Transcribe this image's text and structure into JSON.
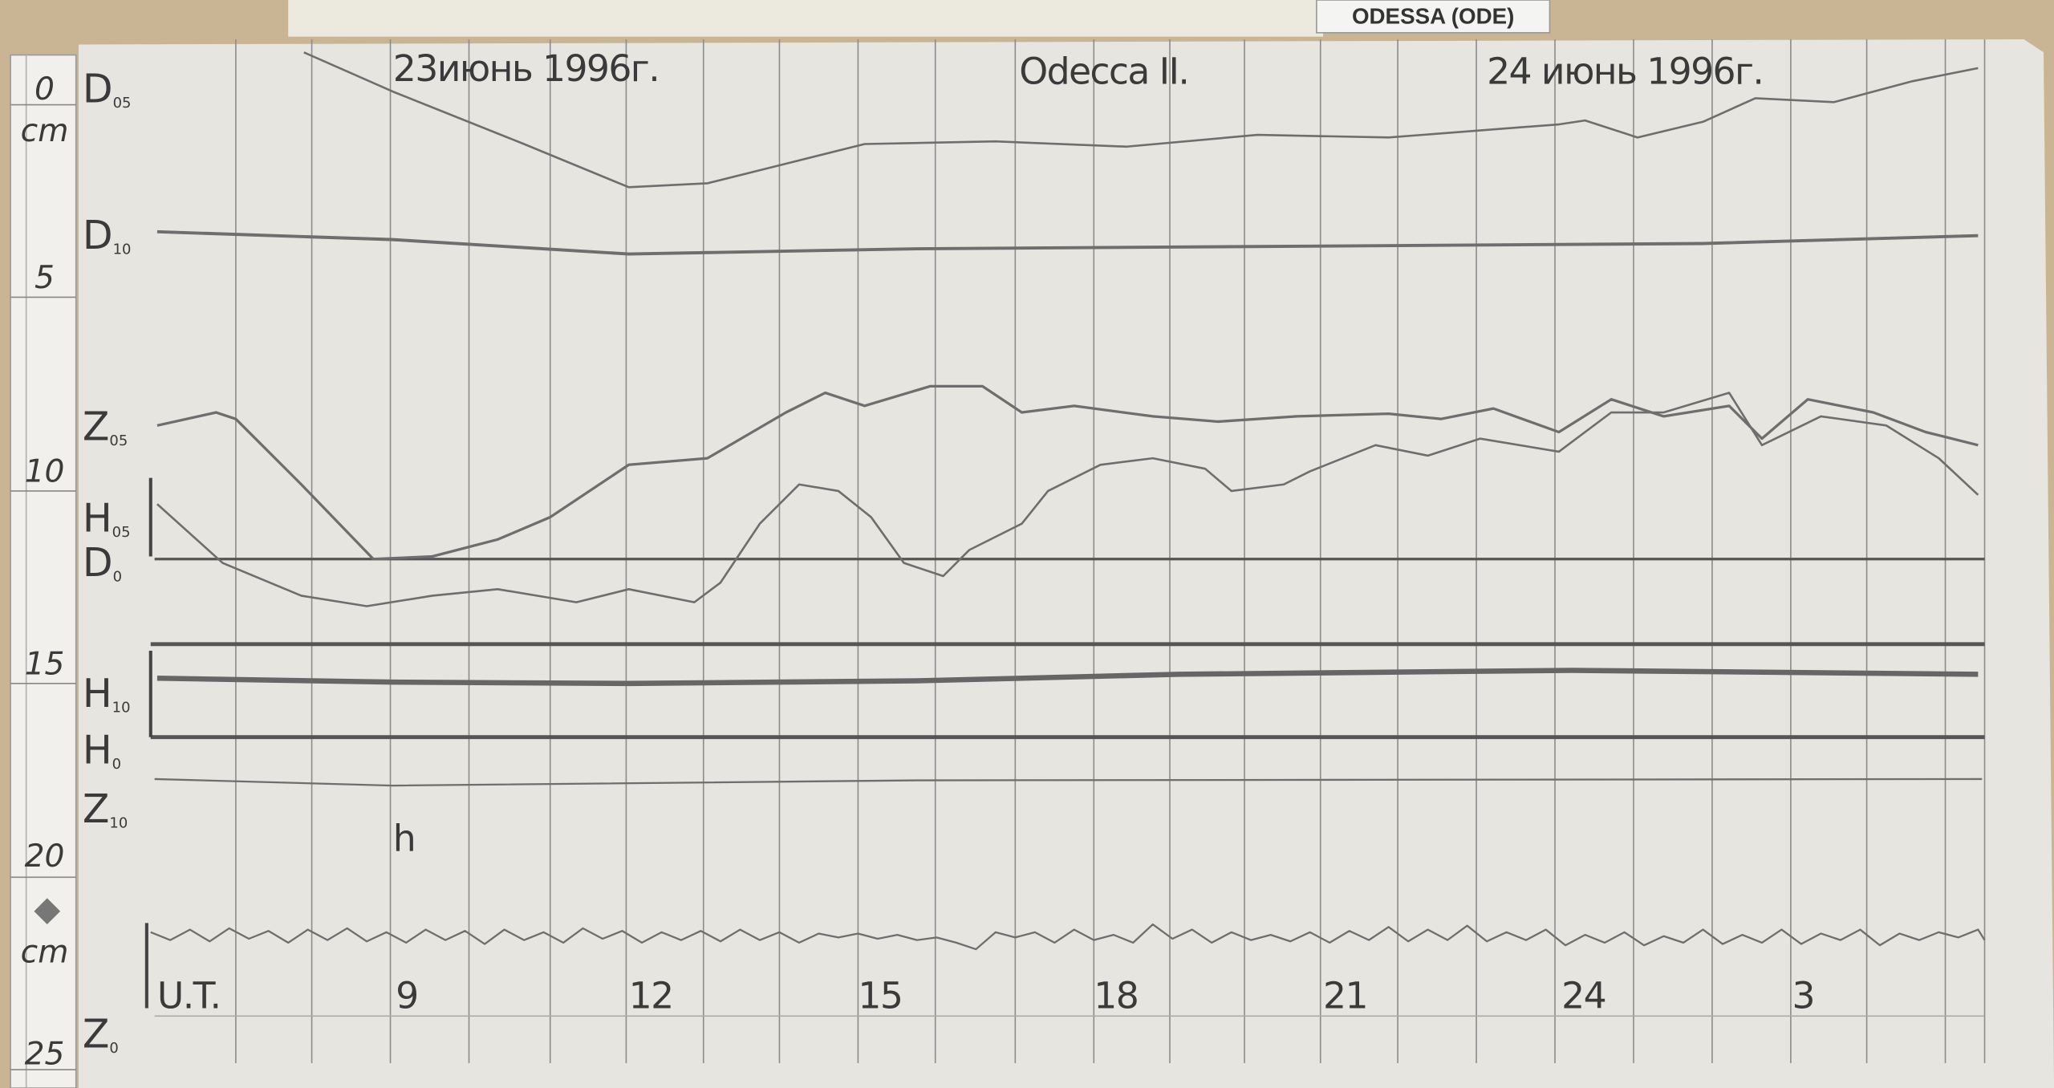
{
  "header": {
    "station_tag": "ODESSA (ODE)"
  },
  "titles": {
    "date_left": "23июнь 1996г.",
    "station": "Odecca II.",
    "date_right": "24 июнь 1996г."
  },
  "ruler": {
    "labels": [
      "0",
      "cm",
      "5",
      "10",
      "15",
      "20",
      "cm",
      "25"
    ]
  },
  "traces": [
    {
      "letter": "D",
      "sub": "05"
    },
    {
      "letter": "D",
      "sub": "10"
    },
    {
      "letter": "Z",
      "sub": "05"
    },
    {
      "letter": "H",
      "sub": "05"
    },
    {
      "letter": "D",
      "sub": "0"
    },
    {
      "letter": "H",
      "sub": "10"
    },
    {
      "letter": "H",
      "sub": "0"
    },
    {
      "letter": "Z",
      "sub": "10"
    },
    {
      "letter": "Z",
      "sub": "0"
    }
  ],
  "marks": {
    "h": "h"
  },
  "time_axis": {
    "labels": [
      "U.T.",
      "9",
      "12",
      "15",
      "18",
      "21",
      "24",
      "3"
    ]
  }
}
